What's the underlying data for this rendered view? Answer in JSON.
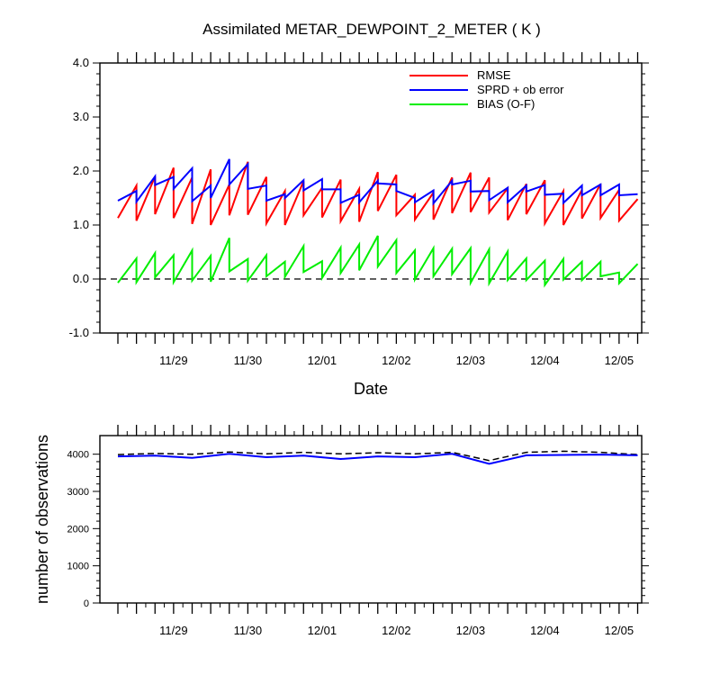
{
  "chart_data": [
    {
      "type": "line",
      "title": "Assimilated METAR_DEWPOINT_2_METER ( K )",
      "xlabel": "Date",
      "ylabel": "",
      "ylim": [
        -1.0,
        4.0
      ],
      "yticks": [
        "-1.0",
        "0.0",
        "1.0",
        "2.0",
        "3.0",
        "4.0"
      ],
      "xtick_labels": [
        "11/29",
        "11/30",
        "12/01",
        "12/02",
        "12/03",
        "12/04",
        "12/05"
      ],
      "legend_position": "top-right",
      "zero_line": "dashed",
      "series": [
        {
          "name": "RMSE",
          "color": "#ff0000",
          "x": [
            0,
            0.25,
            0.25,
            0.5,
            0.5,
            0.75,
            0.75,
            1.0,
            1.0,
            1.25,
            1.25,
            1.5,
            1.5,
            1.75,
            1.75,
            2.0,
            2.0,
            2.25,
            2.25,
            2.5,
            2.5,
            2.75,
            2.75,
            3.0,
            3.0,
            3.25,
            3.25,
            3.5,
            3.5,
            3.75,
            3.75,
            4.0,
            4.0,
            4.25,
            4.25,
            4.5,
            4.5,
            4.75,
            4.75,
            5.0,
            5.0,
            5.25,
            5.25,
            5.5,
            5.5,
            5.75,
            5.75,
            6.0,
            6.0,
            6.25,
            6.25,
            6.5,
            6.5,
            6.75,
            6.75,
            7.0
          ],
          "y": [
            1.13,
            1.73,
            1.08,
            1.9,
            1.2,
            2.06,
            1.13,
            1.88,
            1.02,
            2.03,
            1.0,
            1.75,
            1.18,
            2.17,
            1.19,
            1.89,
            1.03,
            1.63,
            1.0,
            1.81,
            1.18,
            1.69,
            1.14,
            1.84,
            1.07,
            1.67,
            1.06,
            1.98,
            1.26,
            1.93,
            1.18,
            1.56,
            1.1,
            1.6,
            1.1,
            1.88,
            1.22,
            1.97,
            1.24,
            1.88,
            1.23,
            1.68,
            1.09,
            1.76,
            1.2,
            1.83,
            1.03,
            1.63,
            1.0,
            1.65,
            1.12,
            1.76,
            1.13,
            1.65,
            1.08,
            1.48
          ]
        },
        {
          "name": "SPRD + ob error",
          "color": "#0000ff",
          "x": [
            0,
            0.25,
            0.25,
            0.5,
            0.5,
            0.75,
            0.75,
            1.0,
            1.0,
            1.25,
            1.25,
            1.5,
            1.5,
            1.75,
            1.75,
            2.0,
            2.0,
            2.25,
            2.25,
            2.5,
            2.5,
            2.75,
            2.75,
            3.0,
            3.0,
            3.25,
            3.25,
            3.5,
            3.5,
            3.75,
            3.75,
            4.0,
            4.0,
            4.25,
            4.25,
            4.5,
            4.5,
            4.75,
            4.75,
            5.0,
            5.0,
            5.25,
            5.25,
            5.5,
            5.5,
            5.75,
            5.75,
            6.0,
            6.0,
            6.25,
            6.25,
            6.5,
            6.5,
            6.75,
            6.75,
            7.0
          ],
          "y": [
            1.45,
            1.63,
            1.43,
            1.9,
            1.74,
            1.89,
            1.67,
            2.05,
            1.44,
            1.73,
            1.5,
            2.22,
            1.75,
            2.13,
            1.67,
            1.73,
            1.45,
            1.57,
            1.5,
            1.83,
            1.64,
            1.85,
            1.66,
            1.66,
            1.41,
            1.56,
            1.42,
            1.82,
            1.77,
            1.75,
            1.63,
            1.5,
            1.42,
            1.64,
            1.4,
            1.82,
            1.75,
            1.82,
            1.62,
            1.63,
            1.46,
            1.69,
            1.42,
            1.73,
            1.62,
            1.74,
            1.56,
            1.58,
            1.41,
            1.73,
            1.55,
            1.75,
            1.55,
            1.75,
            1.55,
            1.57
          ]
        },
        {
          "name": "BIAS (O-F)",
          "color": "#00ee00",
          "x": [
            0,
            0.25,
            0.25,
            0.5,
            0.5,
            0.75,
            0.75,
            1.0,
            1.0,
            1.25,
            1.25,
            1.5,
            1.5,
            1.75,
            1.75,
            2.0,
            2.0,
            2.25,
            2.25,
            2.5,
            2.5,
            2.75,
            2.75,
            3.0,
            3.0,
            3.25,
            3.25,
            3.5,
            3.5,
            3.75,
            3.75,
            4.0,
            4.0,
            4.25,
            4.25,
            4.5,
            4.5,
            4.75,
            4.75,
            5.0,
            5.0,
            5.25,
            5.25,
            5.5,
            5.5,
            5.75,
            5.75,
            6.0,
            6.0,
            6.25,
            6.25,
            6.5,
            6.5,
            6.75,
            6.75,
            7.0
          ],
          "y": [
            -0.07,
            0.38,
            -0.06,
            0.48,
            0.03,
            0.44,
            -0.06,
            0.53,
            -0.03,
            0.43,
            -0.05,
            0.76,
            0.14,
            0.37,
            -0.03,
            0.44,
            0.05,
            0.32,
            0.04,
            0.61,
            0.13,
            0.33,
            0.02,
            0.58,
            0.11,
            0.64,
            0.16,
            0.8,
            0.23,
            0.72,
            0.11,
            0.53,
            -0.01,
            0.57,
            0.05,
            0.56,
            0.09,
            0.57,
            -0.07,
            0.55,
            -0.08,
            0.51,
            -0.02,
            0.38,
            -0.02,
            0.34,
            -0.11,
            0.37,
            -0.01,
            0.32,
            -0.02,
            0.32,
            0.05,
            0.12,
            -0.08,
            0.28
          ]
        }
      ]
    },
    {
      "type": "line",
      "title": "",
      "xlabel": "",
      "ylabel": "number of observations",
      "ylim": [
        0,
        4500
      ],
      "yticks": [
        "0",
        "1000",
        "2000",
        "3000",
        "4000"
      ],
      "xtick_labels": [
        "11/29",
        "11/30",
        "12/01",
        "12/02",
        "12/03",
        "12/04",
        "12/05"
      ],
      "series": [
        {
          "color": "#000000",
          "style": "dashed",
          "x": [
            0,
            0.5,
            1.0,
            1.5,
            2.0,
            2.5,
            3.0,
            3.5,
            4.0,
            4.5,
            5.0,
            5.5,
            6.0,
            6.5,
            7.0
          ],
          "y": [
            3990,
            4020,
            4000,
            4060,
            4010,
            4050,
            4010,
            4040,
            4010,
            4050,
            3830,
            4050,
            4080,
            4050,
            3990
          ]
        },
        {
          "color": "#0000ff",
          "style": "solid",
          "x": [
            0,
            0.5,
            1.0,
            1.5,
            2.0,
            2.5,
            3.0,
            3.5,
            4.0,
            4.5,
            5.0,
            5.5,
            6.0,
            6.5,
            7.0
          ],
          "y": [
            3940,
            3960,
            3900,
            4010,
            3920,
            3960,
            3870,
            3940,
            3920,
            4010,
            3740,
            3970,
            3980,
            3990,
            3970
          ]
        }
      ]
    }
  ]
}
